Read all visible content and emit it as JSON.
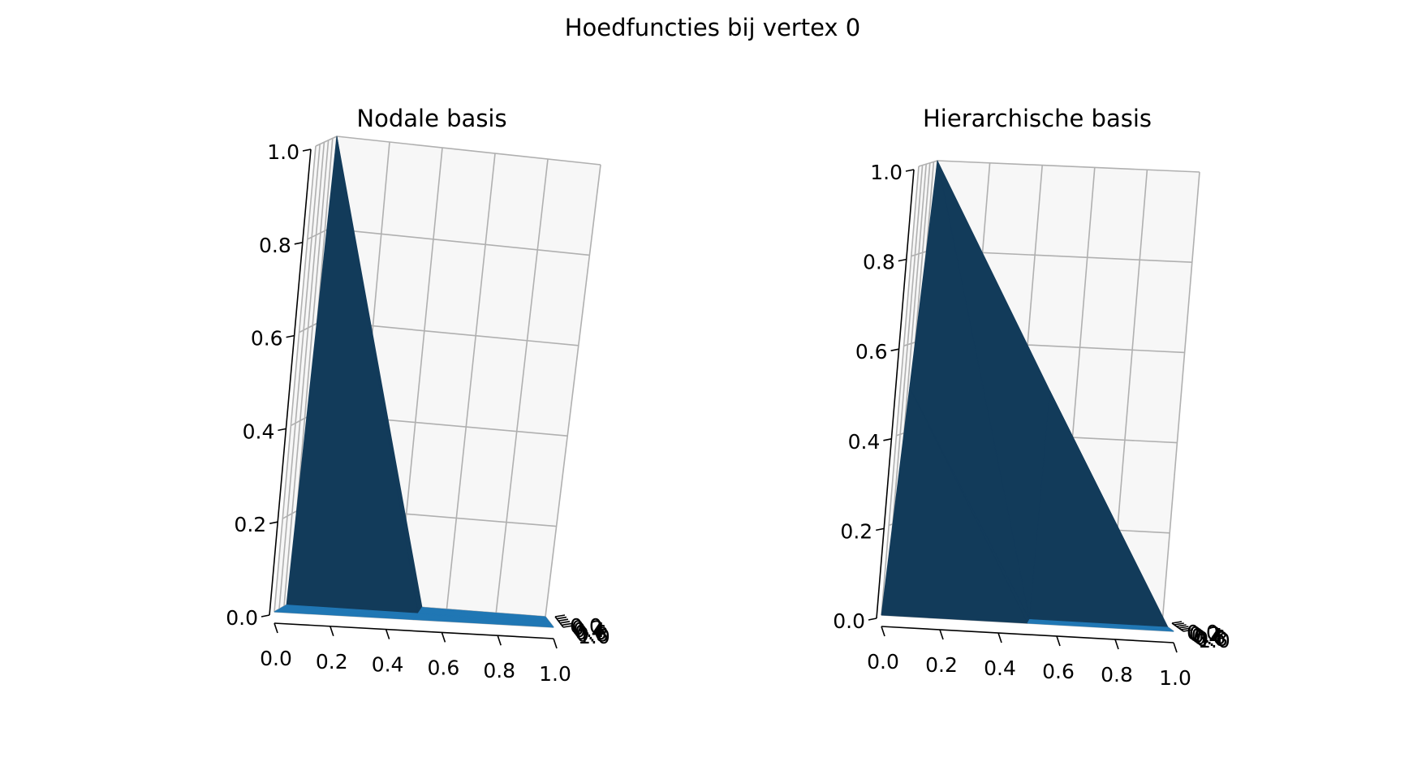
{
  "suptitle": "Hoedfuncties bij vertex 0",
  "chart_data": [
    {
      "type": "surface3d",
      "title": "Nodale basis",
      "xlabel": "",
      "ylabel": "",
      "zlabel": "",
      "xlim": [
        0,
        1
      ],
      "ylim": [
        0,
        1
      ],
      "zlim": [
        0,
        1
      ],
      "x_ticks": [
        "0.0",
        "0.2",
        "0.4",
        "0.6",
        "0.8",
        "1.0"
      ],
      "y_ticks": [
        "0.0",
        "0.2",
        "0.4",
        "0.6",
        "0.8",
        "1.0"
      ],
      "z_ticks": [
        "0.0",
        "0.2",
        "0.4",
        "0.6",
        "0.8",
        "1.0"
      ],
      "grid": true,
      "colors": {
        "surface": "#2077b4",
        "shaded": "#123b5a"
      },
      "vertices": [
        {
          "x": 0,
          "y": 0,
          "z": 1
        },
        {
          "x": 0.5,
          "y": 0,
          "z": 0
        },
        {
          "x": 0,
          "y": 0.5,
          "z": 0
        },
        {
          "x": 0.5,
          "y": 0.5,
          "z": 0
        },
        {
          "x": 1,
          "y": 0,
          "z": 0
        },
        {
          "x": 0,
          "y": 1,
          "z": 0
        },
        {
          "x": 1,
          "y": 0.5,
          "z": 0
        },
        {
          "x": 0.5,
          "y": 1,
          "z": 0
        },
        {
          "x": 1,
          "y": 1,
          "z": 0
        }
      ]
    },
    {
      "type": "surface3d",
      "title": "Hierarchische basis",
      "xlabel": "",
      "ylabel": "",
      "zlabel": "",
      "xlim": [
        0,
        1
      ],
      "ylim": [
        0,
        1
      ],
      "zlim": [
        0,
        1
      ],
      "x_ticks": [
        "0.0",
        "0.2",
        "0.4",
        "0.6",
        "0.8",
        "1.0"
      ],
      "y_ticks": [
        "0.0",
        "0.2",
        "0.4",
        "0.6",
        "0.8",
        "1.0"
      ],
      "z_ticks": [
        "0.0",
        "0.2",
        "0.4",
        "0.6",
        "0.8",
        "1.0"
      ],
      "grid": true,
      "colors": {
        "surface": "#2077b4",
        "shaded": "#123b5a"
      },
      "vertices": [
        {
          "x": 0,
          "y": 0,
          "z": 1
        },
        {
          "x": 0.5,
          "y": 0,
          "z": 0.5
        },
        {
          "x": 0,
          "y": 0.5,
          "z": 0.5
        },
        {
          "x": 0.5,
          "y": 0.5,
          "z": 0
        },
        {
          "x": 1,
          "y": 0,
          "z": 0
        },
        {
          "x": 0,
          "y": 1,
          "z": 0
        },
        {
          "x": 1,
          "y": 0.5,
          "z": 0
        },
        {
          "x": 0.5,
          "y": 1,
          "z": 0
        },
        {
          "x": 1,
          "y": 1,
          "z": 0
        }
      ]
    }
  ]
}
